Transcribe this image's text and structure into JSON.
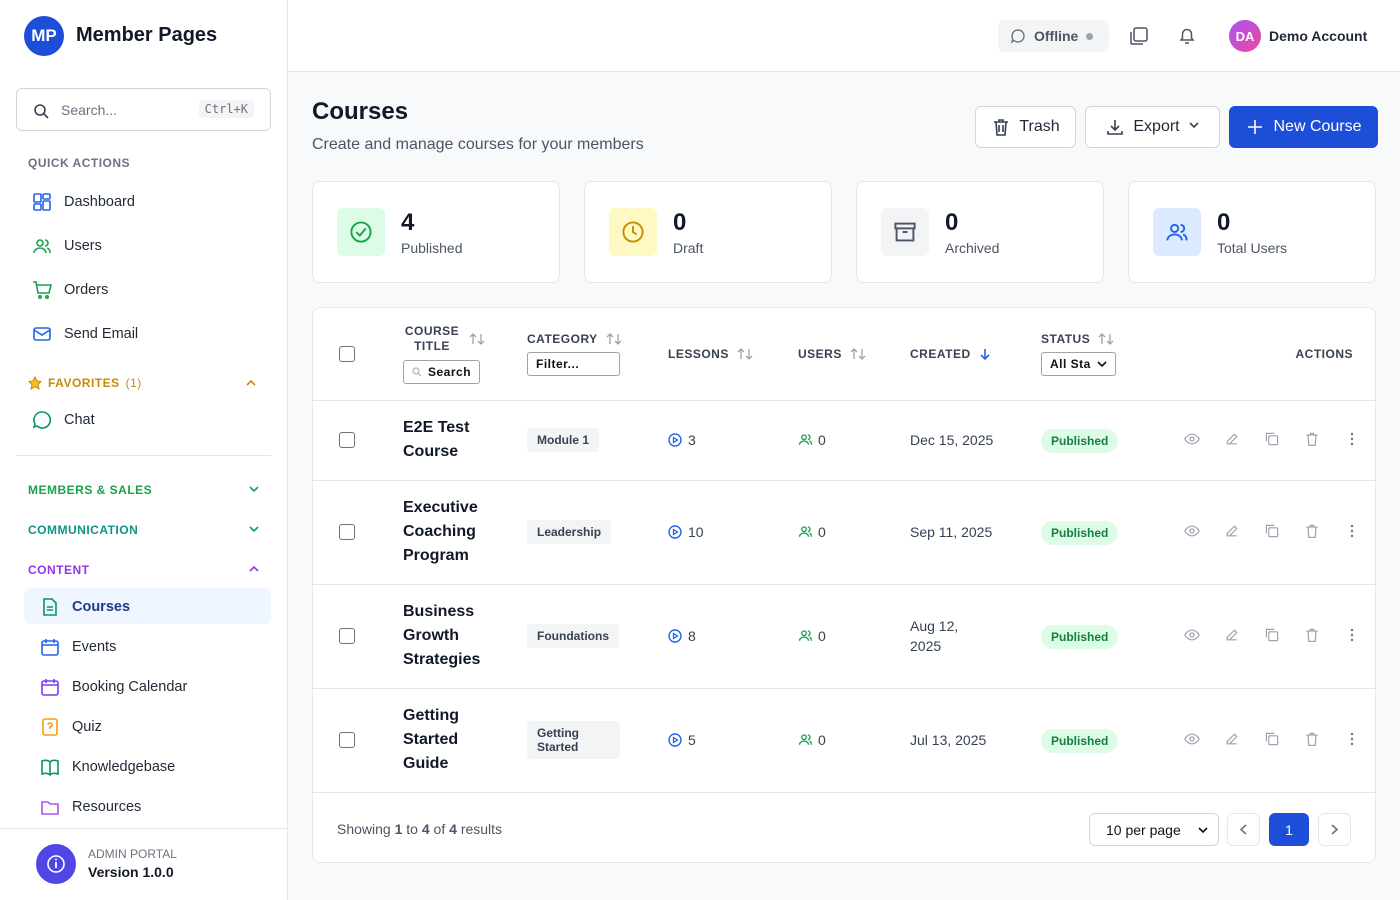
{
  "sidebar": {
    "logo": "MP",
    "brand": "Member Pages",
    "search_placeholder": "Search...",
    "shortcut": "Ctrl+K",
    "quick_actions": {
      "title": "QUICK ACTIONS",
      "items": [
        "Dashboard",
        "Users",
        "Orders",
        "Send Email"
      ]
    },
    "favorites": {
      "title": "FAVORITES",
      "count": "(1)",
      "items": [
        "Chat"
      ]
    },
    "sections": [
      "MEMBERS & SALES",
      "COMMUNICATION",
      "CONTENT"
    ],
    "content_items": [
      "Courses",
      "Events",
      "Booking Calendar",
      "Quiz",
      "Knowledgebase",
      "Resources"
    ],
    "footer": {
      "label": "ADMIN PORTAL",
      "version": "Version 1.0.0"
    }
  },
  "topbar": {
    "status": "Offline",
    "avatar": "DA",
    "account": "Demo Account"
  },
  "header": {
    "title": "Courses",
    "subtitle": "Create and manage courses for your members",
    "buttons": [
      "Trash",
      "Export",
      "New Course"
    ]
  },
  "stats": [
    {
      "value": 4,
      "label": "Published"
    },
    {
      "value": 0,
      "label": "Draft"
    },
    {
      "value": 0,
      "label": "Archived"
    },
    {
      "value": 0,
      "label": "Total Users"
    }
  ],
  "table": {
    "columns": [
      "COURSE TITLE",
      "CATEGORY",
      "LESSONS",
      "USERS",
      "CREATED",
      "STATUS",
      "ACTIONS"
    ],
    "filters": {
      "title": "Search",
      "category": "Filter...",
      "status": "All Sta"
    },
    "rows": [
      [
        "E2E Test Course",
        "Module 1",
        3,
        0,
        "Dec 15, 2025",
        "Published"
      ],
      [
        "Executive Coaching Program",
        "Leadership",
        10,
        0,
        "Sep 11, 2025",
        "Published"
      ],
      [
        "Business Growth Strategies",
        "Foundations",
        8,
        0,
        "Aug 12, 2025",
        "Published"
      ],
      [
        "Getting Started Guide",
        "Getting Started",
        5,
        0,
        "Jul 13, 2025",
        "Published"
      ]
    ]
  },
  "pagination": {
    "showing": "Showing",
    "from": 1,
    "to_word": "to",
    "to": 4,
    "of_word": "of",
    "total": 4,
    "results": "results",
    "per_page": "10 per page",
    "page": 1
  }
}
